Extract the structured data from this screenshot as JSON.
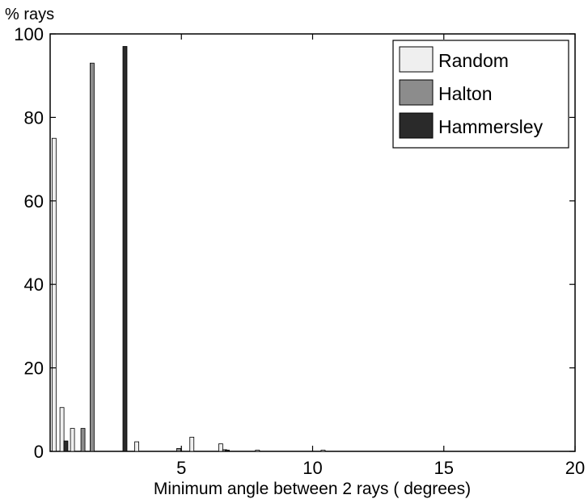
{
  "chart_data": {
    "type": "bar",
    "ylabel": "% rays",
    "xlabel": "Minimum angle between 2 rays ( degrees)",
    "xlim": [
      0,
      20
    ],
    "ylim": [
      0,
      100
    ],
    "xticks": [
      5,
      10,
      15,
      20
    ],
    "xtick_labels": [
      "5",
      "10",
      "15",
      "20"
    ],
    "yticks": [
      0,
      20,
      40,
      60,
      80,
      100
    ],
    "ytick_labels": [
      "0",
      "20",
      "40",
      "60",
      "80",
      "100"
    ],
    "grid": false,
    "legend_position": "top-right",
    "series": [
      {
        "name": "Random",
        "color": "#efefef",
        "points": [
          {
            "x": 0.15,
            "y": 75
          },
          {
            "x": 0.45,
            "y": 10.5
          },
          {
            "x": 0.85,
            "y": 5.5
          },
          {
            "x": 3.3,
            "y": 2.3
          },
          {
            "x": 5.4,
            "y": 3.4
          },
          {
            "x": 6.5,
            "y": 1.8
          },
          {
            "x": 7.9,
            "y": 0.3
          },
          {
            "x": 10.4,
            "y": 0.3
          }
        ]
      },
      {
        "name": "Halton",
        "color": "#8c8c8c",
        "points": [
          {
            "x": 1.25,
            "y": 5.5
          },
          {
            "x": 1.6,
            "y": 93
          },
          {
            "x": 4.9,
            "y": 0.7
          },
          {
            "x": 6.65,
            "y": 0.4
          }
        ]
      },
      {
        "name": "Hammersley",
        "color": "#2a2a2a",
        "points": [
          {
            "x": 0.6,
            "y": 2.5
          },
          {
            "x": 2.85,
            "y": 97
          },
          {
            "x": 6.75,
            "y": 0.3
          }
        ]
      }
    ]
  }
}
